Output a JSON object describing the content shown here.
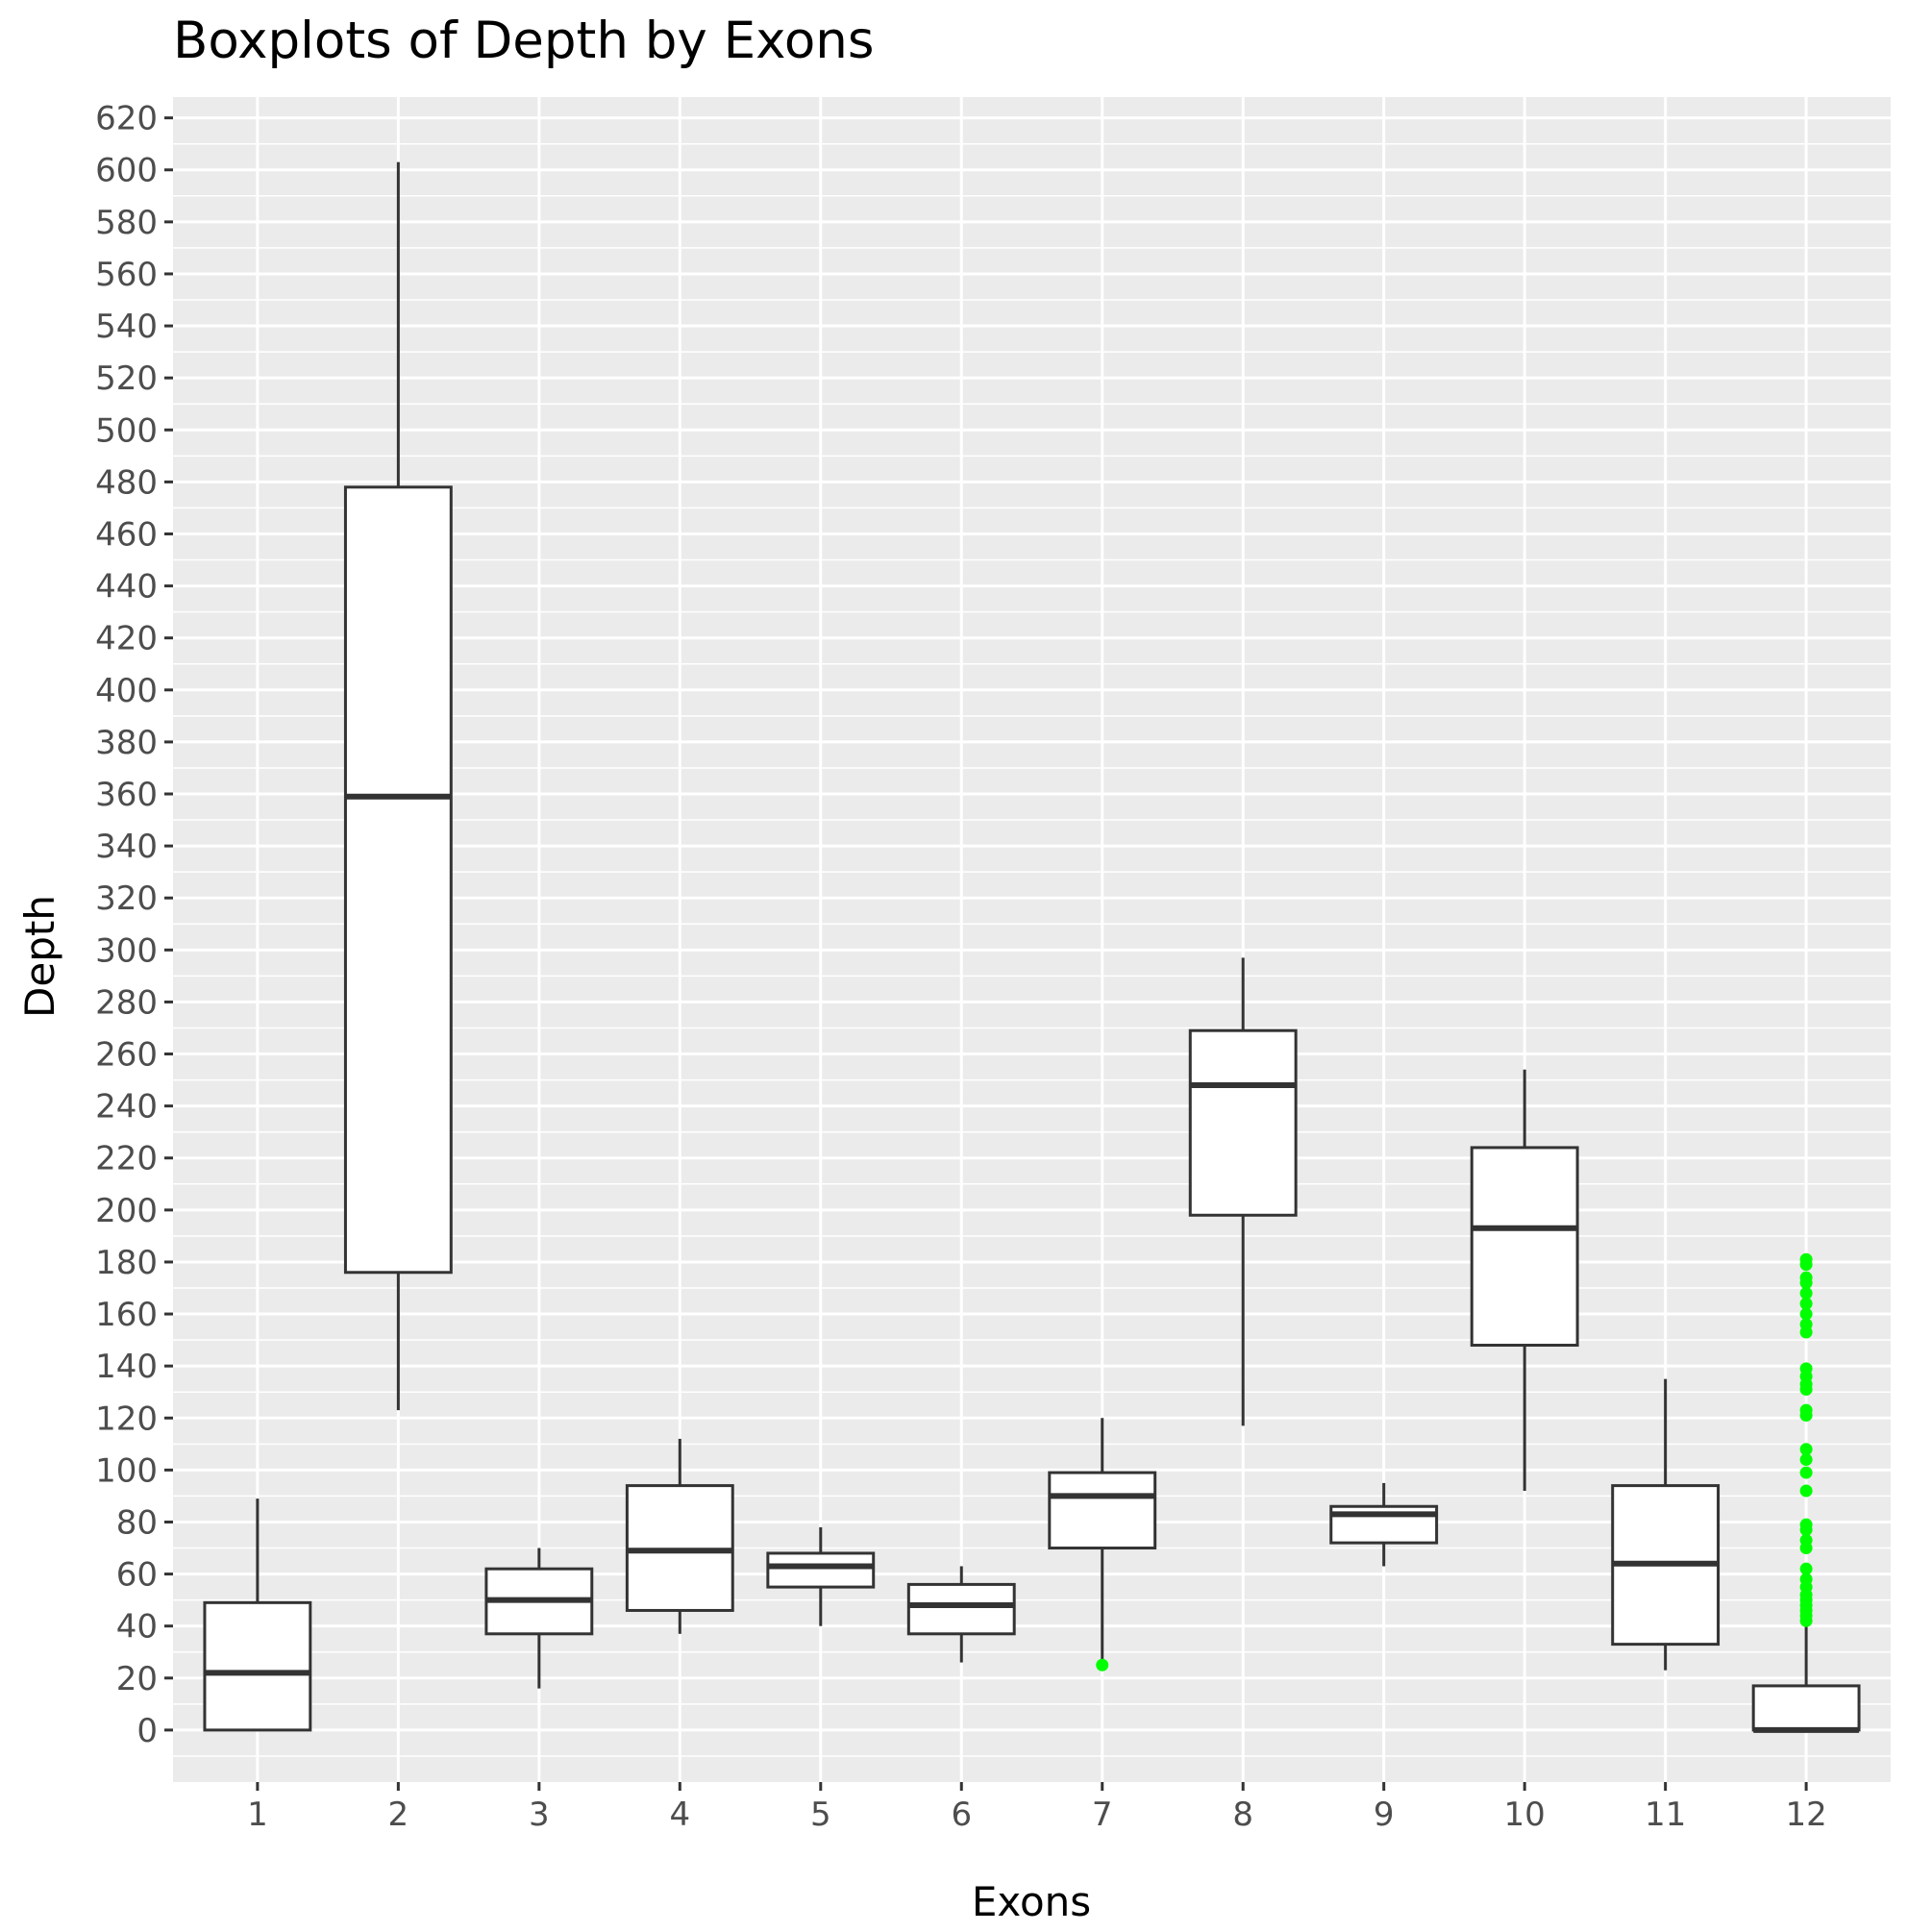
{
  "chart_data": {
    "type": "boxplot",
    "title": "Boxplots of Depth by Exons",
    "xlabel": "Exons",
    "ylabel": "Depth",
    "ylim": [
      -20,
      628
    ],
    "yticks": [
      0,
      20,
      40,
      60,
      80,
      100,
      120,
      140,
      160,
      180,
      200,
      220,
      240,
      260,
      280,
      300,
      320,
      340,
      360,
      380,
      400,
      420,
      440,
      460,
      480,
      500,
      520,
      540,
      560,
      580,
      600,
      620
    ],
    "categories": [
      "1",
      "2",
      "3",
      "4",
      "5",
      "6",
      "7",
      "8",
      "9",
      "10",
      "11",
      "12"
    ],
    "boxes": [
      {
        "category": "1",
        "min": 0,
        "q1": 0,
        "median": 22,
        "q3": 49,
        "max": 89,
        "outliers": []
      },
      {
        "category": "2",
        "min": 123,
        "q1": 176,
        "median": 359,
        "q3": 478,
        "max": 603,
        "outliers": []
      },
      {
        "category": "3",
        "min": 16,
        "q1": 37,
        "median": 50,
        "q3": 62,
        "max": 70,
        "outliers": []
      },
      {
        "category": "4",
        "min": 37,
        "q1": 46,
        "median": 69,
        "q3": 94,
        "max": 112,
        "outliers": []
      },
      {
        "category": "5",
        "min": 40,
        "q1": 55,
        "median": 63,
        "q3": 68,
        "max": 78,
        "outliers": []
      },
      {
        "category": "6",
        "min": 26,
        "q1": 37,
        "median": 48,
        "q3": 56,
        "max": 63,
        "outliers": []
      },
      {
        "category": "7",
        "min": 26,
        "q1": 70,
        "median": 90,
        "q3": 99,
        "max": 120,
        "outliers": [
          25
        ]
      },
      {
        "category": "8",
        "min": 117,
        "q1": 198,
        "median": 248,
        "q3": 269,
        "max": 297,
        "outliers": []
      },
      {
        "category": "9",
        "min": 63,
        "q1": 72,
        "median": 83,
        "q3": 86,
        "max": 95,
        "outliers": []
      },
      {
        "category": "10",
        "min": 92,
        "q1": 148,
        "median": 193,
        "q3": 224,
        "max": 254,
        "outliers": []
      },
      {
        "category": "11",
        "min": 23,
        "q1": 33,
        "median": 64,
        "q3": 94,
        "max": 135,
        "outliers": []
      },
      {
        "category": "12",
        "min": 0,
        "q1": 0,
        "median": 0,
        "q3": 17,
        "max": 41,
        "outliers": [
          42,
          44,
          46,
          48,
          50,
          52,
          55,
          58,
          62,
          70,
          73,
          77,
          79,
          92,
          99,
          104,
          108,
          121,
          123,
          131,
          133,
          136,
          139,
          153,
          156,
          160,
          164,
          168,
          172,
          174,
          179,
          181
        ]
      }
    ],
    "outlier_color": "#00ff00",
    "grid": true,
    "legend": "none"
  }
}
